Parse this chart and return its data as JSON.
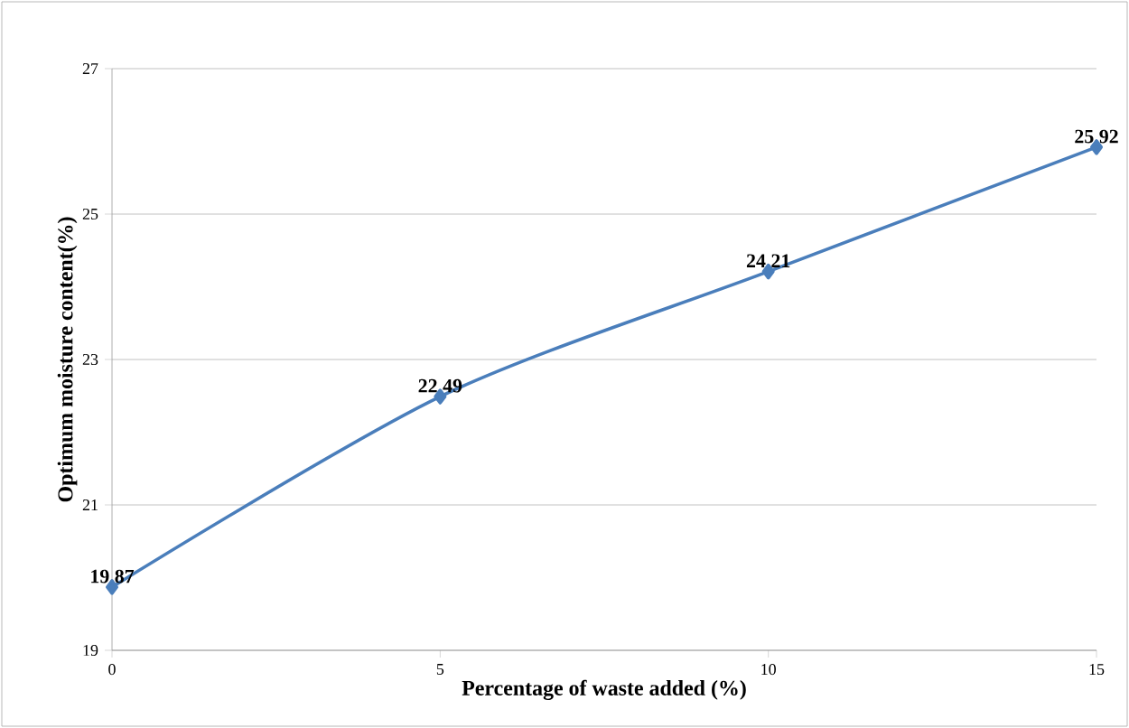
{
  "chart_data": {
    "type": "line",
    "xlabel": "Percentage of waste added (%)",
    "ylabel": "Optimum moisture content(%)",
    "x": [
      0,
      5,
      10,
      15
    ],
    "values": [
      19.87,
      22.49,
      24.21,
      25.92
    ],
    "color": "#4a7ebb",
    "marker": "diamond",
    "data_labels": true,
    "grid": "y",
    "xlim": [
      0,
      15
    ],
    "xticks": [
      0,
      5,
      10,
      15
    ],
    "ylim": [
      19,
      27
    ],
    "yticks": [
      19,
      21,
      23,
      25,
      27
    ]
  }
}
